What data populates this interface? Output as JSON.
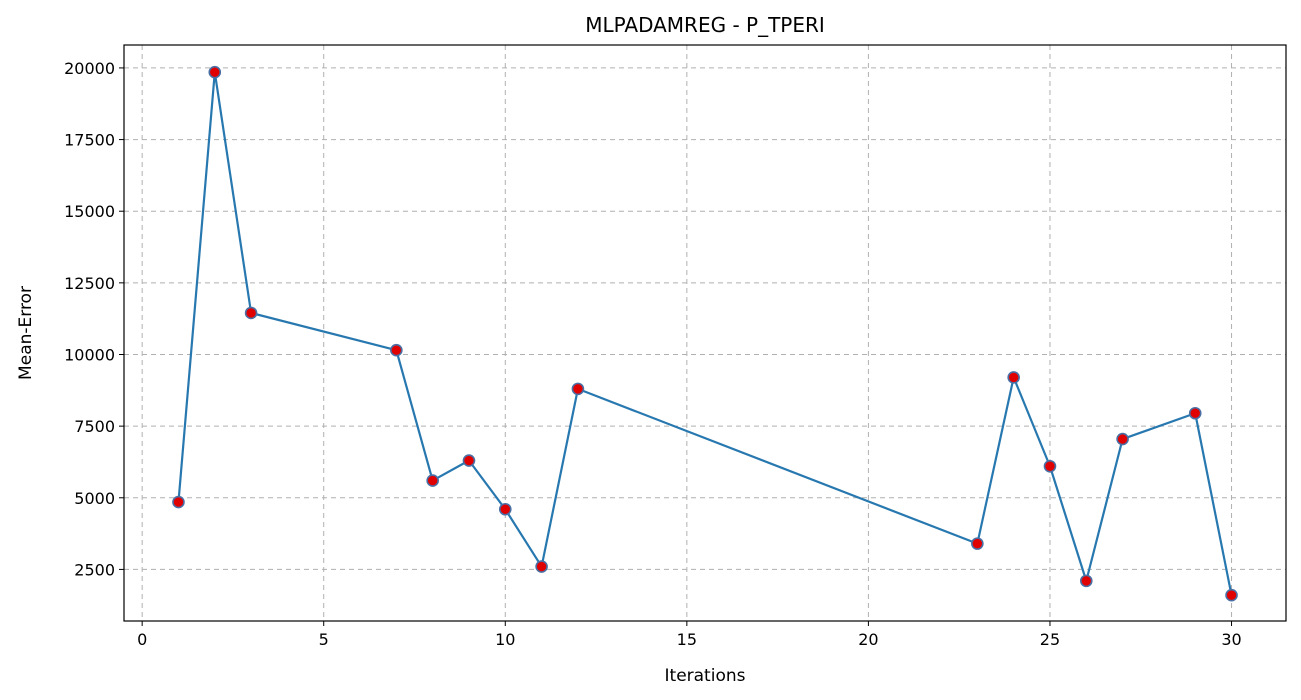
{
  "chart_data": {
    "type": "line",
    "title": "MLPADAMREG - P_TPERI",
    "xlabel": "Iterations",
    "ylabel": "Mean-Error",
    "xlim": [
      -0.5,
      31.5
    ],
    "ylim": [
      700,
      20800
    ],
    "xticks": [
      0,
      5,
      10,
      15,
      20,
      25,
      30
    ],
    "yticks": [
      2500,
      5000,
      7500,
      10000,
      12500,
      15000,
      17500,
      20000
    ],
    "grid": true,
    "line_color": "#2878b0",
    "marker_face_color": "#e00000",
    "marker_edge_color": "#4a6fa5",
    "series": [
      {
        "x": [
          1,
          2,
          3,
          7,
          8,
          9,
          10,
          11,
          12,
          23,
          24,
          25,
          26,
          27,
          29,
          30
        ],
        "values": [
          4850,
          19850,
          11450,
          10150,
          5600,
          6300,
          4600,
          2600,
          8800,
          3400,
          9200,
          6100,
          2100,
          7050,
          7950,
          1600
        ]
      }
    ]
  }
}
